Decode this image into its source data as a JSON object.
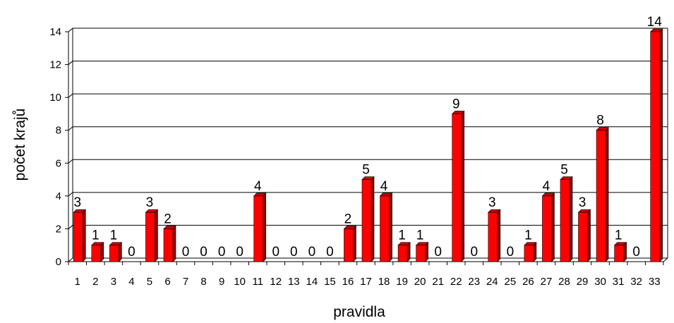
{
  "chart_data": {
    "type": "bar",
    "title": "",
    "xlabel": "pravidla",
    "ylabel": "počet krajů",
    "ylim": [
      0,
      14
    ],
    "y_ticks": [
      0,
      2,
      4,
      6,
      8,
      10,
      12,
      14
    ],
    "grid": "horizontal",
    "bar_color": "#ff0000",
    "categories": [
      "1",
      "2",
      "3",
      "4",
      "5",
      "6",
      "7",
      "8",
      "9",
      "10",
      "11",
      "12",
      "13",
      "14",
      "15",
      "16",
      "17",
      "18",
      "19",
      "20",
      "21",
      "22",
      "23",
      "24",
      "25",
      "26",
      "27",
      "28",
      "29",
      "30",
      "31",
      "32",
      "33"
    ],
    "values": [
      3,
      1,
      1,
      0,
      3,
      2,
      0,
      0,
      0,
      0,
      4,
      0,
      0,
      0,
      0,
      2,
      5,
      4,
      1,
      1,
      0,
      9,
      0,
      3,
      0,
      1,
      4,
      5,
      3,
      8,
      1,
      0,
      14
    ]
  }
}
